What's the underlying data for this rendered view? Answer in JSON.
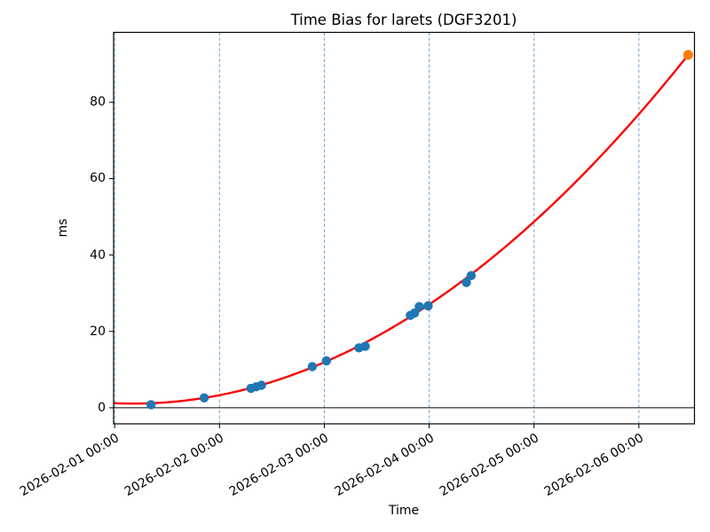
{
  "chart_data": {
    "type": "scatter+line",
    "title": "Time Bias for larets (DGF3201)",
    "xlabel": "Time",
    "ylabel": "ms",
    "x_ticks": [
      "2026-02-01 00:00",
      "2026-02-02 00:00",
      "2026-02-03 00:00",
      "2026-02-04 00:00",
      "2026-02-05 00:00",
      "2026-02-06 00:00"
    ],
    "x_tick_days": [
      0,
      1,
      2,
      3,
      4,
      5
    ],
    "y_ticks": [
      0,
      20,
      40,
      60,
      80
    ],
    "xlim_days": [
      -0.01,
      5.53
    ],
    "ylim": [
      -4.2,
      98.3
    ],
    "grid": "vertical dashed gridlines at each day tick",
    "zero_line": 0,
    "series": [
      {
        "name": "observed-bias-points",
        "type": "scatter",
        "color": "#1f77b4",
        "points": [
          {
            "time": "2026-02-01 08:20",
            "t": 0.347,
            "y": 0.8
          },
          {
            "time": "2026-02-01 20:30",
            "t": 0.854,
            "y": 2.6
          },
          {
            "time": "2026-02-02 07:12",
            "t": 1.3,
            "y": 5.1
          },
          {
            "time": "2026-02-02 08:24",
            "t": 1.35,
            "y": 5.5
          },
          {
            "time": "2026-02-02 09:36",
            "t": 1.4,
            "y": 5.9
          },
          {
            "time": "2026-02-02 21:14",
            "t": 1.885,
            "y": 10.8
          },
          {
            "time": "2026-02-03 00:29",
            "t": 2.02,
            "y": 12.3
          },
          {
            "time": "2026-02-03 07:55",
            "t": 2.33,
            "y": 15.7
          },
          {
            "time": "2026-02-03 09:22",
            "t": 2.39,
            "y": 16.1
          },
          {
            "time": "2026-02-03 19:41",
            "t": 2.82,
            "y": 24.2
          },
          {
            "time": "2026-02-03 20:38",
            "t": 2.86,
            "y": 24.8
          },
          {
            "time": "2026-02-03 21:43",
            "t": 2.905,
            "y": 26.5
          },
          {
            "time": "2026-02-03 23:46",
            "t": 2.99,
            "y": 26.7
          },
          {
            "time": "2026-02-04 08:31",
            "t": 3.355,
            "y": 32.8
          },
          {
            "time": "2026-02-04 09:36",
            "t": 3.4,
            "y": 34.6
          }
        ]
      },
      {
        "name": "quadratic-fit-curve",
        "type": "line",
        "color": "#fb0000",
        "t_range": [
          0,
          5.47
        ],
        "fit_coefficients": {
          "a": 3.26,
          "b": -1.16,
          "c": 1.2
        },
        "samples": [
          {
            "t": 0,
            "y": 1.2
          },
          {
            "t": 0.5,
            "y": 1.4
          },
          {
            "t": 1,
            "y": 3.3
          },
          {
            "t": 1.5,
            "y": 6.8
          },
          {
            "t": 2,
            "y": 11.9
          },
          {
            "t": 2.5,
            "y": 18.7
          },
          {
            "t": 3,
            "y": 27.1
          },
          {
            "t": 3.5,
            "y": 37.1
          },
          {
            "t": 4,
            "y": 48.7
          },
          {
            "t": 4.5,
            "y": 62.0
          },
          {
            "t": 5,
            "y": 76.9
          },
          {
            "t": 5.47,
            "y": 92.4
          }
        ]
      },
      {
        "name": "predicted-end-point",
        "type": "scatter",
        "color": "#ff7f0e",
        "points": [
          {
            "time": "2026-02-06 11:17",
            "t": 5.47,
            "y": 92.4
          }
        ]
      }
    ],
    "colors": {
      "grid": "#74a3c9",
      "frame": "#000000",
      "zero_line": "#000000",
      "background": "#ffffff",
      "text": "#000000"
    }
  }
}
